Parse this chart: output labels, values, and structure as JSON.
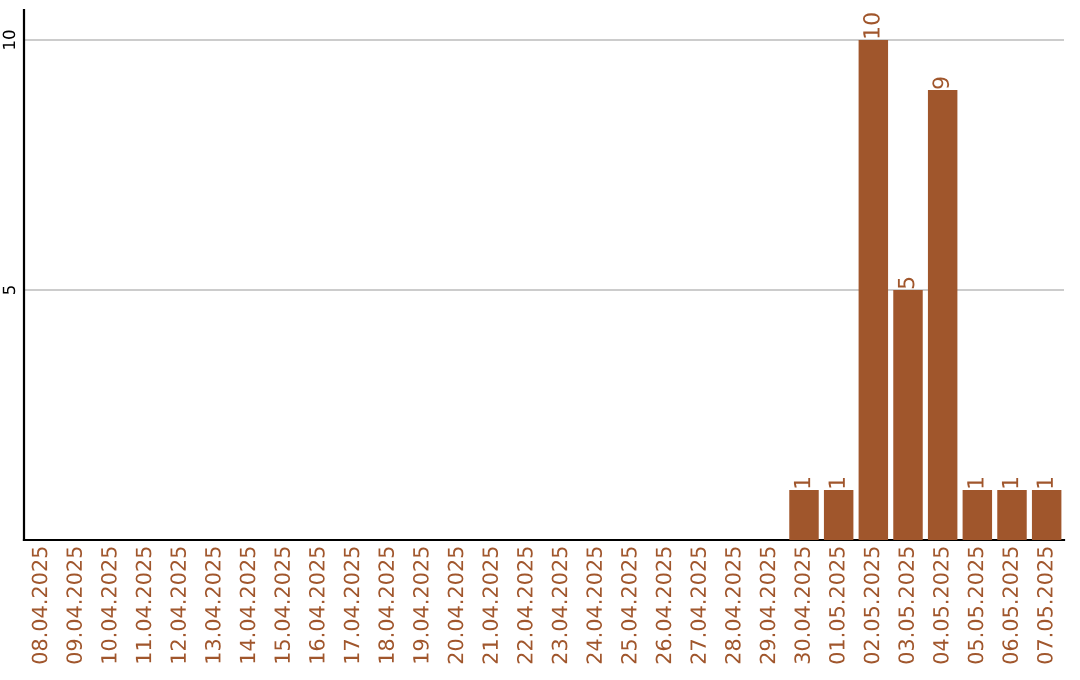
{
  "chart_data": {
    "type": "bar",
    "categories": [
      "08.04.2025",
      "09.04.2025",
      "10.04.2025",
      "11.04.2025",
      "12.04.2025",
      "13.04.2025",
      "14.04.2025",
      "15.04.2025",
      "16.04.2025",
      "17.04.2025",
      "18.04.2025",
      "19.04.2025",
      "20.04.2025",
      "21.04.2025",
      "22.04.2025",
      "23.04.2025",
      "24.04.2025",
      "25.04.2025",
      "26.04.2025",
      "27.04.2025",
      "28.04.2025",
      "29.04.2025",
      "30.04.2025",
      "01.05.2025",
      "02.05.2025",
      "03.05.2025",
      "04.05.2025",
      "05.05.2025",
      "06.05.2025",
      "07.05.2025"
    ],
    "values": [
      0,
      0,
      0,
      0,
      0,
      0,
      0,
      0,
      0,
      0,
      0,
      0,
      0,
      0,
      0,
      0,
      0,
      0,
      0,
      0,
      0,
      0,
      1,
      1,
      10,
      5,
      9,
      1,
      1,
      1
    ],
    "value_labels": [
      null,
      null,
      null,
      null,
      null,
      null,
      null,
      null,
      null,
      null,
      null,
      null,
      null,
      null,
      null,
      null,
      null,
      null,
      null,
      null,
      null,
      null,
      "1",
      "1",
      "10",
      "5",
      "9",
      "1",
      "1",
      "1"
    ],
    "color": "#a0562c",
    "ylim": [
      0,
      10.6
    ],
    "yticks": [
      5,
      10
    ],
    "grid": "y"
  }
}
